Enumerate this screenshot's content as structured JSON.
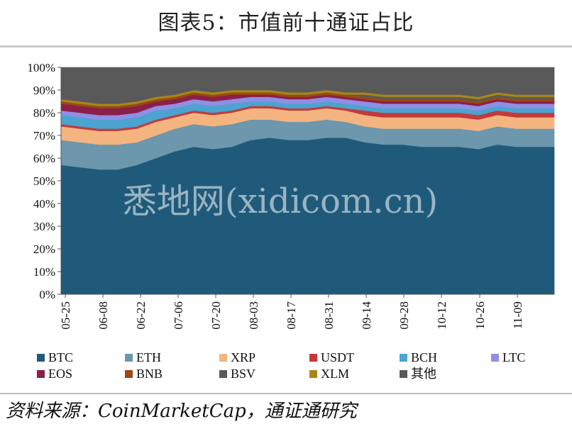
{
  "title": "图表5：市值前十通证占比",
  "source": "资料来源：CoinMarketCap，通证通研究",
  "watermark": "悉地网(xidicom.cn)",
  "chart_data": {
    "type": "area",
    "stacked": true,
    "y_axis": {
      "min": 0,
      "max": 100,
      "unit": "%",
      "ticks": [
        "0%",
        "10%",
        "20%",
        "30%",
        "40%",
        "50%",
        "60%",
        "70%",
        "80%",
        "90%",
        "100%"
      ]
    },
    "x_tick_labels": [
      "05-25",
      "06-08",
      "06-22",
      "07-06",
      "07-20",
      "08-03",
      "08-17",
      "08-31",
      "09-14",
      "09-28",
      "10-12",
      "10-26",
      "11-09"
    ],
    "x": [
      "05-25",
      "06-01",
      "06-08",
      "06-15",
      "06-22",
      "06-29",
      "07-06",
      "07-13",
      "07-20",
      "07-27",
      "08-03",
      "08-10",
      "08-17",
      "08-24",
      "08-31",
      "09-07",
      "09-14",
      "09-21",
      "09-28",
      "10-05",
      "10-12",
      "10-19",
      "10-26",
      "11-02",
      "11-09",
      "11-16",
      "11-22"
    ],
    "series": [
      {
        "name": "BTC",
        "color": "#1f5a7a",
        "values": [
          57,
          56,
          55,
          55,
          57,
          60,
          63,
          65,
          64,
          65,
          68,
          69,
          68,
          68,
          69,
          69,
          67,
          66,
          66,
          65,
          65,
          65,
          64,
          66,
          65,
          65,
          65
        ]
      },
      {
        "name": "ETH",
        "color": "#6c97ac",
        "values": [
          11,
          11,
          11,
          11,
          10,
          10,
          10,
          10,
          10,
          10,
          9,
          8,
          8,
          8,
          8,
          7,
          7,
          7,
          7,
          8,
          8,
          8,
          8,
          8,
          8,
          8,
          8
        ]
      },
      {
        "name": "XRP",
        "color": "#f4b480",
        "values": [
          6,
          6,
          6,
          6,
          6,
          6,
          5,
          5,
          5,
          5,
          5,
          5,
          5,
          5,
          5,
          5,
          5,
          5,
          5,
          5,
          5,
          5,
          5,
          5,
          5,
          5,
          5
        ]
      },
      {
        "name": "USDT",
        "color": "#c23b3b",
        "values": [
          1,
          1,
          1,
          1,
          1,
          1,
          1,
          1,
          1,
          1,
          1,
          1,
          1,
          1,
          1,
          1,
          2,
          2,
          2,
          2,
          2,
          2,
          2,
          2,
          2,
          2,
          2
        ]
      },
      {
        "name": "BCH",
        "color": "#4ba3cf",
        "values": [
          4,
          4,
          4,
          4,
          4,
          4,
          3,
          3,
          3,
          3,
          2,
          2,
          2,
          2,
          2,
          2,
          2,
          2,
          2,
          2,
          2,
          2,
          2,
          2,
          2,
          2,
          2
        ]
      },
      {
        "name": "LTC",
        "color": "#8f8fe6",
        "values": [
          2,
          2,
          2,
          2,
          2,
          2,
          2,
          2,
          2,
          2,
          2,
          2,
          2,
          2,
          2,
          2,
          2,
          2,
          2,
          2,
          2,
          2,
          2,
          2,
          2,
          2,
          2
        ]
      },
      {
        "name": "EOS",
        "color": "#8a1f4a",
        "values": [
          3,
          3,
          3,
          3,
          3,
          2,
          2,
          2,
          2,
          2,
          1,
          1,
          1,
          1,
          1,
          1,
          1,
          1,
          1,
          1,
          1,
          1,
          1,
          1,
          1,
          1,
          1
        ]
      },
      {
        "name": "BNB",
        "color": "#9a4a10",
        "values": [
          1,
          1,
          1,
          1,
          1,
          1,
          1,
          1,
          1,
          1,
          1,
          1,
          1,
          1,
          1,
          1,
          1,
          1,
          1,
          1,
          1,
          1,
          1,
          1,
          1,
          1,
          1
        ]
      },
      {
        "name": "BSV",
        "color": "#5a5a5a",
        "values": [
          0,
          0,
          0,
          0,
          0,
          0,
          0,
          0,
          0,
          0,
          0,
          0,
          0,
          0,
          0,
          0,
          1,
          1,
          1,
          1,
          1,
          1,
          1,
          1,
          1,
          1,
          1
        ]
      },
      {
        "name": "XLM",
        "color": "#a8861a",
        "values": [
          1,
          1,
          1,
          1,
          1,
          1,
          1,
          1,
          1,
          1,
          1,
          1,
          1,
          1,
          1,
          1,
          1,
          1,
          1,
          1,
          1,
          1,
          1,
          1,
          1,
          1,
          1
        ]
      },
      {
        "name": "其他",
        "color": "#595959",
        "values": [
          14,
          15,
          16,
          16,
          15,
          13,
          12,
          10,
          11,
          10,
          10,
          10,
          11,
          11,
          10,
          11,
          11,
          12,
          12,
          12,
          12,
          12,
          13,
          11,
          12,
          12,
          12
        ]
      }
    ],
    "legend": {
      "placement": "bottom"
    },
    "grid": false
  }
}
